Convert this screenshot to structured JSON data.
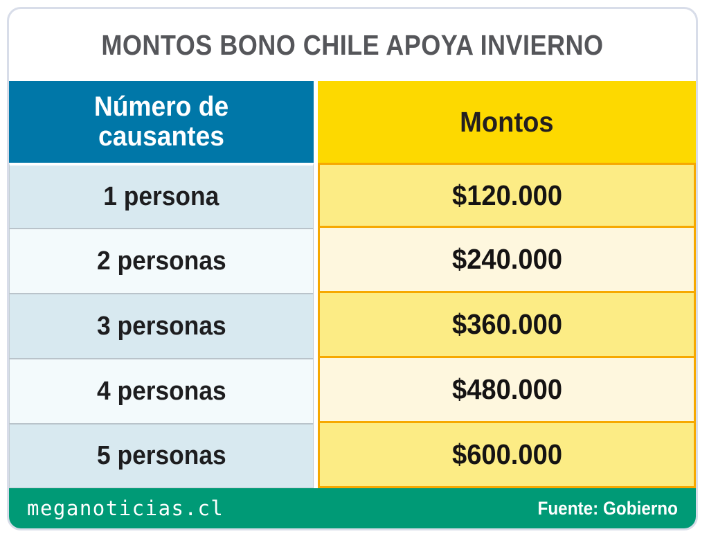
{
  "title": "MONTOS BONO CHILE APOYA INVIERNO",
  "chart_data": {
    "type": "table",
    "title": "MONTOS BONO CHILE APOYA INVIERNO",
    "columns": [
      "Número de causantes",
      "Montos"
    ],
    "rows": [
      [
        "1 persona",
        "$120.000"
      ],
      [
        "2 personas",
        "$240.000"
      ],
      [
        "3 personas",
        "$360.000"
      ],
      [
        "4 personas",
        "$480.000"
      ],
      [
        "5 personas",
        "$600.000"
      ]
    ],
    "amounts_clp": [
      120000,
      240000,
      360000,
      480000,
      600000
    ]
  },
  "footer": {
    "brand": "meganoticias.cl",
    "source": "Fuente: Gobierno"
  },
  "colors": {
    "header-blue": "#0077a8",
    "header-yellow": "#fdd900",
    "row-blue": "#d8e9f0",
    "row-blue-light": "#f3fafc",
    "row-yellow": "#fcec85",
    "row-yellow-light": "#fef7de",
    "orange-border": "#f6a800",
    "footer-green": "#009a76",
    "title-gray": "#55565a",
    "text-dark": "#1d1d1f",
    "card-border": "#d8dde9"
  }
}
